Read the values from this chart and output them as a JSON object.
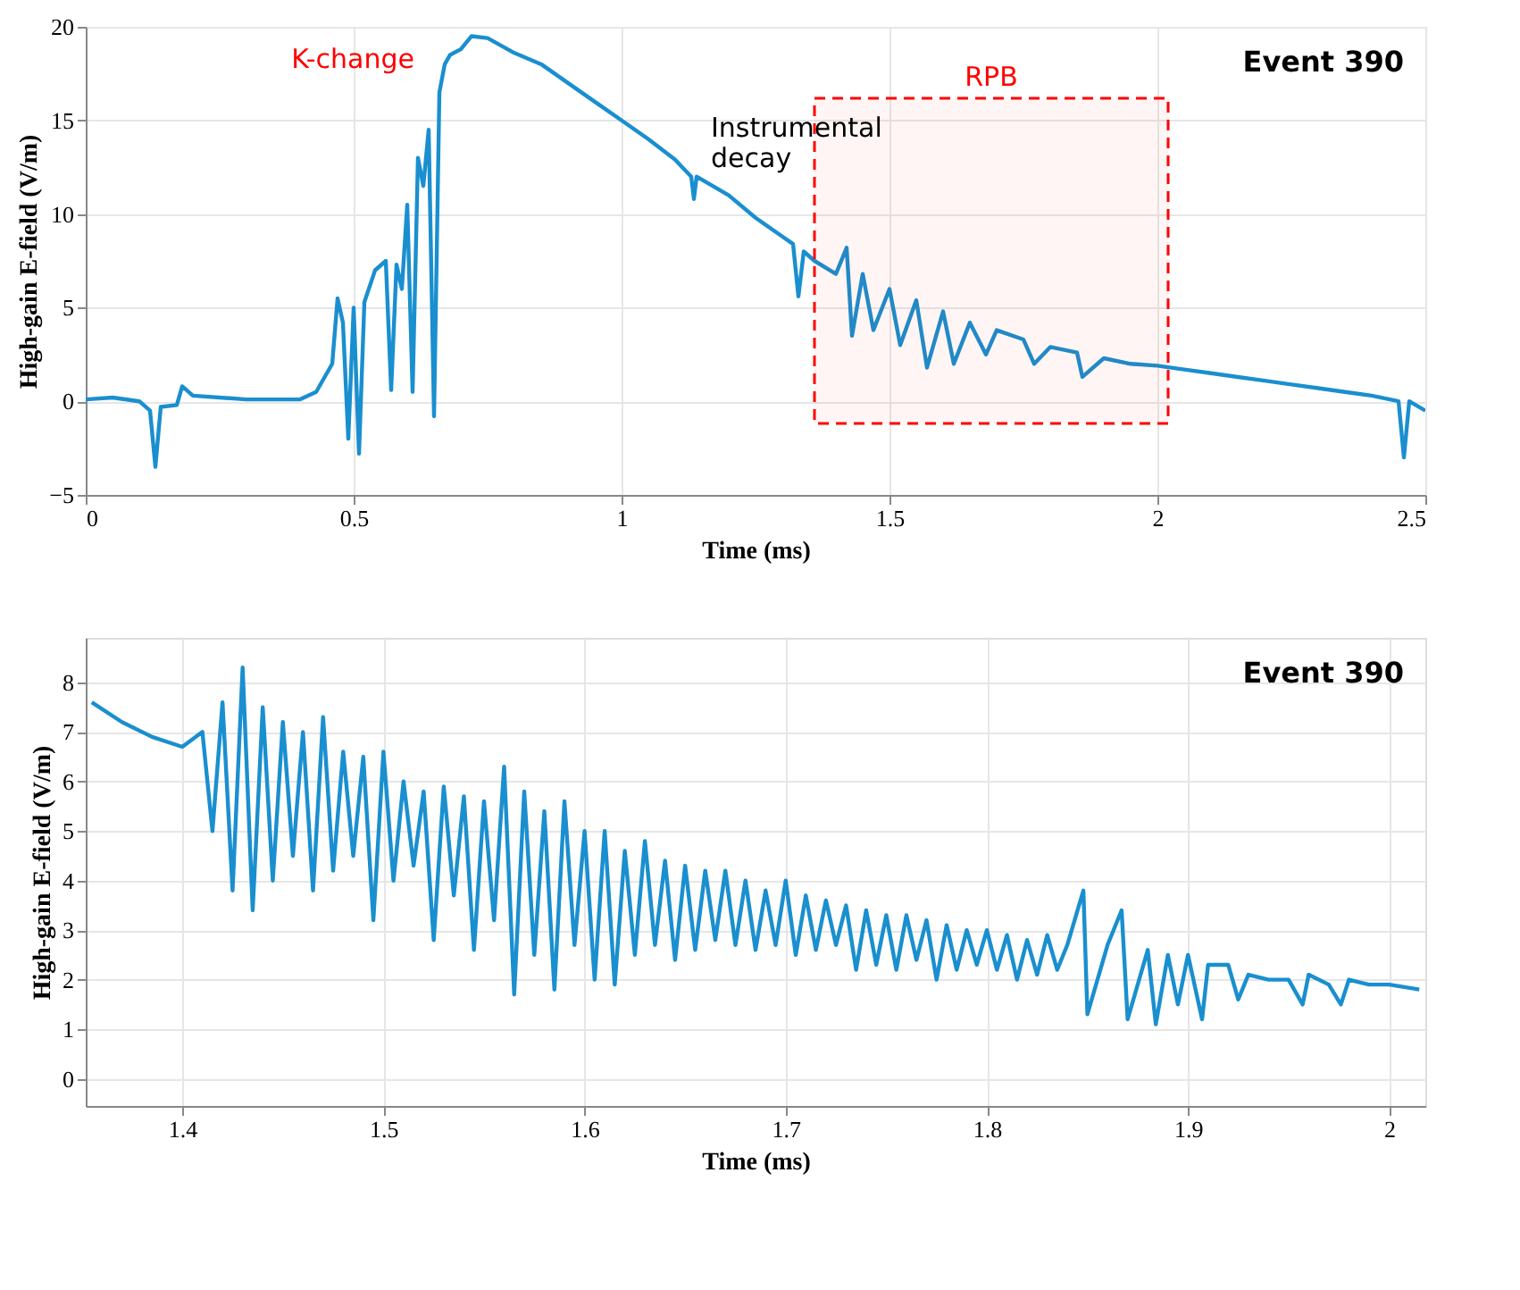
{
  "chart_data": [
    {
      "type": "line",
      "xlabel": "Time (ms)",
      "ylabel": "High-gain E-field (V/m)",
      "xlim": [
        0,
        2.5
      ],
      "ylim": [
        -5,
        20
      ],
      "xticks": [
        0,
        0.5,
        1,
        1.5,
        2,
        2.5
      ],
      "yticks": [
        -5,
        0,
        5,
        10,
        15,
        20
      ],
      "grid": true,
      "series": [
        {
          "color": "#1a8fcf",
          "x": [
            0,
            0.05,
            0.1,
            0.12,
            0.13,
            0.14,
            0.17,
            0.18,
            0.2,
            0.3,
            0.4,
            0.43,
            0.46,
            0.47,
            0.48,
            0.49,
            0.5,
            0.51,
            0.52,
            0.54,
            0.56,
            0.57,
            0.58,
            0.59,
            0.6,
            0.61,
            0.62,
            0.63,
            0.64,
            0.65,
            0.66,
            0.67,
            0.68,
            0.7,
            0.72,
            0.75,
            0.8,
            0.85,
            0.9,
            0.95,
            1.0,
            1.05,
            1.1,
            1.13,
            1.135,
            1.14,
            1.2,
            1.25,
            1.3,
            1.32,
            1.33,
            1.34,
            1.36,
            1.4,
            1.42,
            1.43,
            1.45,
            1.47,
            1.5,
            1.52,
            1.55,
            1.57,
            1.6,
            1.62,
            1.65,
            1.68,
            1.7,
            1.75,
            1.77,
            1.8,
            1.85,
            1.86,
            1.9,
            1.95,
            2.0,
            2.05,
            2.1,
            2.15,
            2.2,
            2.25,
            2.3,
            2.35,
            2.4,
            2.45,
            2.46,
            2.47,
            2.5
          ],
          "values": [
            0.1,
            0.2,
            0.0,
            -0.5,
            -3.5,
            -0.3,
            -0.2,
            0.8,
            0.3,
            0.1,
            0.1,
            0.5,
            2.0,
            5.5,
            4.2,
            -2.0,
            5.0,
            -2.8,
            5.3,
            7.0,
            7.5,
            0.6,
            7.3,
            6.0,
            10.5,
            0.5,
            13.0,
            11.5,
            14.5,
            -0.8,
            16.5,
            18.0,
            18.5,
            18.8,
            19.5,
            19.4,
            18.6,
            18.0,
            17.0,
            16.0,
            15.0,
            14.0,
            12.9,
            12.0,
            10.8,
            12.0,
            11.0,
            9.8,
            8.8,
            8.4,
            5.6,
            8.0,
            7.5,
            6.8,
            8.2,
            3.5,
            6.8,
            3.8,
            6.0,
            3.0,
            5.4,
            1.8,
            4.8,
            2.0,
            4.2,
            2.5,
            3.8,
            3.3,
            2.0,
            2.9,
            2.6,
            1.3,
            2.3,
            2.0,
            1.9,
            1.7,
            1.5,
            1.3,
            1.1,
            0.9,
            0.7,
            0.5,
            0.3,
            0.0,
            -3.0,
            0.0,
            -0.5
          ]
        }
      ],
      "bands": [
        {
          "axis": "x",
          "from": 1.36,
          "to": 2.02,
          "label": "RPB",
          "color": "#ff0000"
        }
      ],
      "annotations": [
        "Event 390",
        {
          "text": "K-change",
          "x": 0.66,
          "y": 17.5
        },
        {
          "text": "Instrumental decay",
          "x": 1.12,
          "y": 12.5
        }
      ]
    },
    {
      "type": "line",
      "xlabel": "Time (ms)",
      "ylabel": "High-gain E-field (V/m)",
      "xlim": [
        1.352,
        2.018
      ],
      "ylim": [
        -0.55,
        8.9
      ],
      "xticks": [
        1.4,
        1.5,
        1.6,
        1.7,
        1.8,
        1.9,
        2
      ],
      "yticks": [
        0,
        1,
        2,
        3,
        4,
        5,
        6,
        7,
        8
      ],
      "grid": true,
      "series": [
        {
          "color": "#1a8fcf",
          "x": [
            1.355,
            1.37,
            1.385,
            1.4,
            1.41,
            1.415,
            1.42,
            1.425,
            1.43,
            1.435,
            1.44,
            1.445,
            1.45,
            1.455,
            1.46,
            1.465,
            1.47,
            1.475,
            1.48,
            1.485,
            1.49,
            1.495,
            1.5,
            1.505,
            1.51,
            1.515,
            1.52,
            1.525,
            1.53,
            1.535,
            1.54,
            1.545,
            1.55,
            1.555,
            1.56,
            1.565,
            1.57,
            1.575,
            1.58,
            1.585,
            1.59,
            1.595,
            1.6,
            1.605,
            1.61,
            1.615,
            1.62,
            1.625,
            1.63,
            1.635,
            1.64,
            1.645,
            1.65,
            1.655,
            1.66,
            1.665,
            1.67,
            1.675,
            1.68,
            1.685,
            1.69,
            1.695,
            1.7,
            1.705,
            1.71,
            1.715,
            1.72,
            1.725,
            1.73,
            1.735,
            1.74,
            1.745,
            1.75,
            1.755,
            1.76,
            1.765,
            1.77,
            1.775,
            1.78,
            1.785,
            1.79,
            1.795,
            1.8,
            1.805,
            1.81,
            1.815,
            1.82,
            1.825,
            1.83,
            1.835,
            1.84,
            1.848,
            1.85,
            1.86,
            1.867,
            1.87,
            1.88,
            1.884,
            1.89,
            1.895,
            1.9,
            1.907,
            1.91,
            1.92,
            1.925,
            1.93,
            1.94,
            1.95,
            1.957,
            1.96,
            1.97,
            1.976,
            1.98,
            1.99,
            2.0,
            2.015
          ],
          "values": [
            7.6,
            7.2,
            6.9,
            6.7,
            7.0,
            5.0,
            7.6,
            3.8,
            8.3,
            3.4,
            7.5,
            4.0,
            7.2,
            4.5,
            7.0,
            3.8,
            7.3,
            4.2,
            6.6,
            4.5,
            6.5,
            3.2,
            6.6,
            4.0,
            6.0,
            4.3,
            5.8,
            2.8,
            5.9,
            3.7,
            5.7,
            2.6,
            5.6,
            3.2,
            6.3,
            1.7,
            5.8,
            2.5,
            5.4,
            1.8,
            5.6,
            2.7,
            5.0,
            2.0,
            5.0,
            1.9,
            4.6,
            2.5,
            4.8,
            2.7,
            4.4,
            2.4,
            4.3,
            2.6,
            4.2,
            2.8,
            4.2,
            2.7,
            4.0,
            2.6,
            3.8,
            2.7,
            4.0,
            2.5,
            3.7,
            2.6,
            3.6,
            2.7,
            3.5,
            2.2,
            3.4,
            2.3,
            3.3,
            2.2,
            3.3,
            2.4,
            3.2,
            2.0,
            3.1,
            2.2,
            3.0,
            2.3,
            3.0,
            2.2,
            2.9,
            2.0,
            2.8,
            2.1,
            2.9,
            2.2,
            2.7,
            3.8,
            1.3,
            2.7,
            3.4,
            1.2,
            2.6,
            1.1,
            2.5,
            1.5,
            2.5,
            1.2,
            2.3,
            2.3,
            1.6,
            2.1,
            2.0,
            2.0,
            1.5,
            2.1,
            1.9,
            1.5,
            2.0,
            1.9,
            1.9,
            1.8
          ]
        }
      ],
      "annotations": [
        "Event 390"
      ]
    }
  ]
}
